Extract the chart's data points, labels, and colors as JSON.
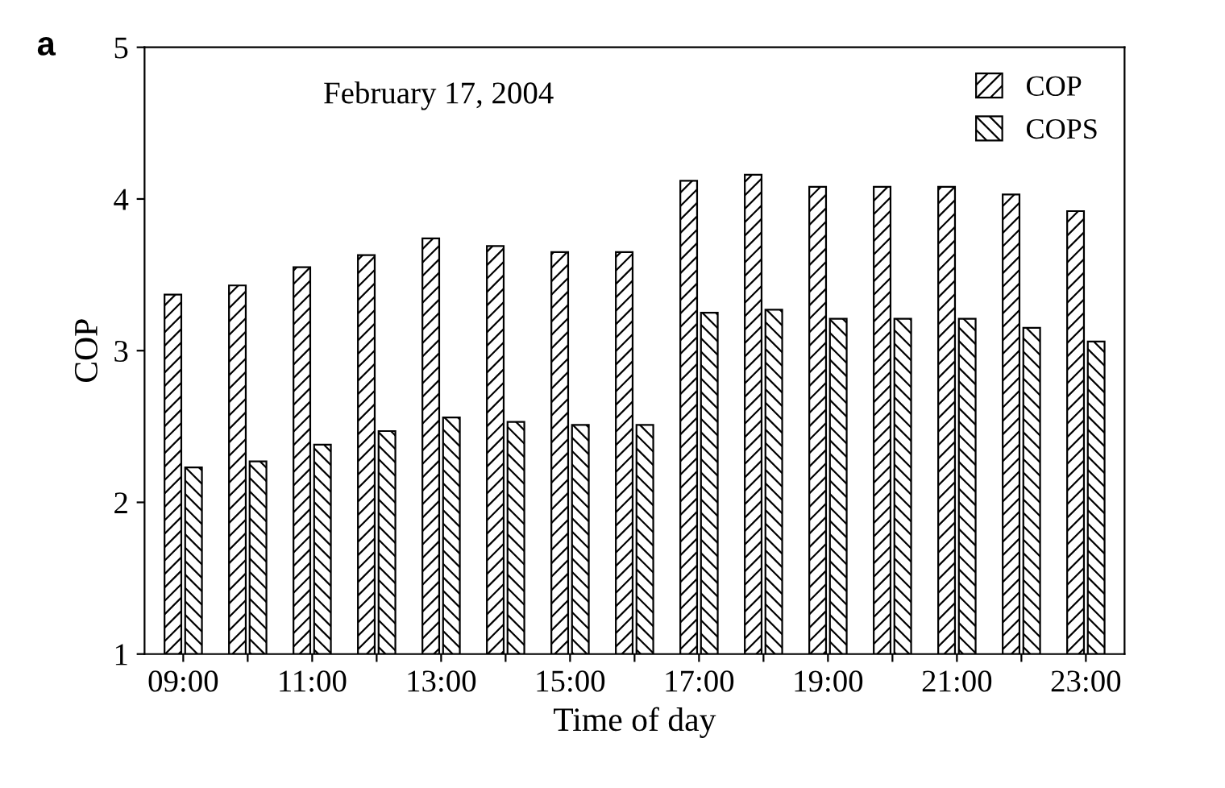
{
  "chart_data": {
    "type": "bar",
    "title": "February 17, 2004",
    "xlabel": "Time of day",
    "ylabel": "COP",
    "annotations": [
      "a"
    ],
    "categories": [
      "09:00",
      null,
      "11:00",
      null,
      "13:00",
      null,
      "15:00",
      null,
      "17:00",
      null,
      "19:00",
      null,
      "21:00",
      null,
      "23:00"
    ],
    "series": [
      {
        "name": "COP",
        "color": "#000000",
        "values": [
          3.37,
          3.43,
          3.55,
          3.63,
          3.74,
          3.69,
          3.65,
          3.65,
          4.12,
          4.16,
          4.08,
          4.08,
          4.08,
          4.03,
          3.92
        ]
      },
      {
        "name": "COPS",
        "color": "#000000",
        "values": [
          2.23,
          2.27,
          2.38,
          2.47,
          2.56,
          2.53,
          2.51,
          2.51,
          3.25,
          3.27,
          3.21,
          3.21,
          3.21,
          3.15,
          3.06
        ]
      }
    ],
    "ylim": [
      1,
      5
    ],
    "yticks": [
      1,
      2,
      3,
      4,
      5
    ],
    "grid": false,
    "legend": "top right"
  }
}
